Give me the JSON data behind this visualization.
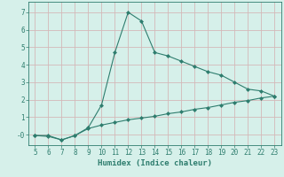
{
  "xlabel": "Humidex (Indice chaleur)",
  "x": [
    5,
    6,
    7,
    8,
    9,
    10,
    11,
    12,
    13,
    14,
    15,
    16,
    17,
    18,
    19,
    20,
    21,
    22,
    23
  ],
  "y_upper": [
    -0.05,
    -0.05,
    -0.3,
    -0.05,
    0.4,
    1.7,
    4.7,
    7.0,
    6.5,
    4.7,
    4.5,
    4.2,
    3.9,
    3.6,
    3.4,
    3.0,
    2.6,
    2.5,
    2.2
  ],
  "y_lower": [
    -0.05,
    -0.1,
    -0.3,
    -0.05,
    0.35,
    0.55,
    0.7,
    0.85,
    0.95,
    1.05,
    1.2,
    1.3,
    1.45,
    1.55,
    1.7,
    1.85,
    1.95,
    2.1,
    2.2
  ],
  "line_color": "#2e7d6e",
  "bg_color": "#d6f0ea",
  "grid_color": "#d4b8b8",
  "ylim": [
    -0.6,
    7.6
  ],
  "xlim": [
    4.5,
    23.5
  ],
  "yticks": [
    0,
    1,
    2,
    3,
    4,
    5,
    6,
    7
  ],
  "ytick_labels": [
    "-0",
    "1",
    "2",
    "3",
    "4",
    "5",
    "6",
    "7"
  ],
  "xticks": [
    5,
    6,
    7,
    8,
    9,
    10,
    11,
    12,
    13,
    14,
    15,
    16,
    17,
    18,
    19,
    20,
    21,
    22,
    23
  ],
  "tick_fontsize": 5.5,
  "xlabel_fontsize": 6.5,
  "marker": "D",
  "marker_size": 2.0
}
